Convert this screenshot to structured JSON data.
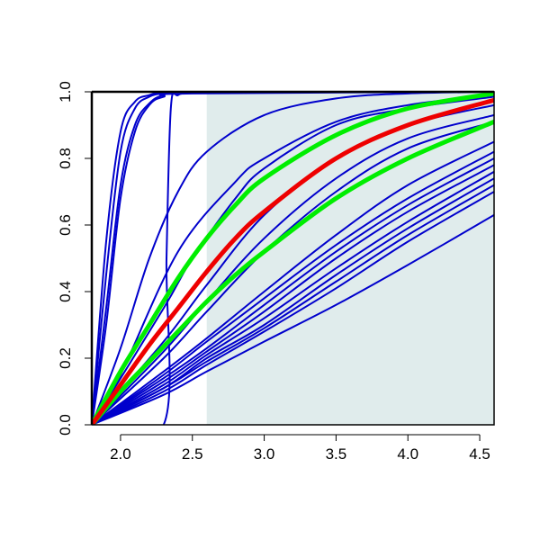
{
  "chart_data": {
    "type": "line",
    "title": "",
    "xlabel": "",
    "ylabel": "",
    "xlim": [
      1.8,
      4.6
    ],
    "ylim": [
      0.0,
      1.0
    ],
    "grid": false,
    "x_ticks": [
      "2.0",
      "2.5",
      "3.0",
      "3.5",
      "4.0",
      "4.5"
    ],
    "y_ticks": [
      "0.0",
      "0.2",
      "0.4",
      "0.6",
      "0.8",
      "1.0"
    ],
    "shaded_region": {
      "x_from": 2.6,
      "x_to": 4.6,
      "color": "#e0ecec"
    },
    "colors": {
      "blue": "#0000cc",
      "green": "#00ee00",
      "red": "#ee0000",
      "axis": "#000000"
    },
    "series": [
      {
        "color": "blue",
        "x": [
          1.8,
          1.9,
          2.0,
          2.1,
          2.2,
          2.3,
          2.5,
          4.6
        ],
        "y": [
          0.0,
          0.55,
          0.88,
          0.97,
          0.99,
          1.0,
          1.0,
          1.0
        ]
      },
      {
        "color": "blue",
        "x": [
          1.8,
          1.9,
          2.0,
          2.1,
          2.2,
          2.3,
          2.5,
          4.6
        ],
        "y": [
          0.0,
          0.45,
          0.82,
          0.95,
          0.985,
          0.995,
          1.0,
          1.0
        ]
      },
      {
        "color": "blue",
        "x": [
          1.8,
          1.9,
          2.0,
          2.1,
          2.2,
          2.3,
          2.5,
          4.6
        ],
        "y": [
          0.0,
          0.35,
          0.72,
          0.9,
          0.965,
          0.99,
          1.0,
          1.0
        ]
      },
      {
        "color": "blue",
        "x": [
          1.8,
          1.9,
          2.0,
          2.1,
          2.2,
          2.3,
          2.5,
          4.6
        ],
        "y": [
          0.0,
          0.3,
          0.68,
          0.88,
          0.96,
          0.985,
          0.995,
          1.0
        ]
      },
      {
        "color": "blue",
        "x": [
          1.8,
          2.3,
          2.32,
          2.35,
          2.4,
          2.5,
          2.6,
          4.6
        ],
        "y": [
          0.0,
          0.0,
          0.5,
          0.95,
          0.99,
          0.998,
          1.0,
          1.0
        ]
      },
      {
        "color": "blue",
        "x": [
          1.8,
          2.0,
          2.2,
          2.4,
          2.6,
          3.0,
          3.5,
          4.0,
          4.6
        ],
        "y": [
          0.0,
          0.23,
          0.5,
          0.7,
          0.82,
          0.93,
          0.98,
          0.995,
          1.0
        ]
      },
      {
        "color": "blue",
        "x": [
          1.8,
          2.0,
          2.4,
          2.8,
          3.0,
          3.5,
          4.0,
          4.6
        ],
        "y": [
          0.0,
          0.15,
          0.52,
          0.73,
          0.8,
          0.91,
          0.96,
          0.99
        ]
      },
      {
        "color": "blue",
        "x": [
          1.8,
          2.3,
          2.5,
          2.8,
          3.0,
          3.5,
          4.0,
          4.6
        ],
        "y": [
          0.0,
          0.35,
          0.5,
          0.68,
          0.77,
          0.9,
          0.95,
          0.985
        ]
      },
      {
        "color": "blue",
        "x": [
          1.8,
          2.3,
          2.6,
          3.0,
          3.5,
          4.0,
          4.6
        ],
        "y": [
          0.0,
          0.25,
          0.42,
          0.63,
          0.8,
          0.9,
          0.96
        ]
      },
      {
        "color": "blue",
        "x": [
          1.8,
          2.3,
          2.6,
          3.0,
          3.5,
          4.0,
          4.6
        ],
        "y": [
          0.0,
          0.22,
          0.37,
          0.56,
          0.74,
          0.86,
          0.93
        ]
      },
      {
        "color": "blue",
        "x": [
          1.8,
          2.3,
          2.6,
          3.0,
          3.5,
          4.0,
          4.6
        ],
        "y": [
          0.0,
          0.2,
          0.34,
          0.52,
          0.7,
          0.83,
          0.91
        ]
      },
      {
        "color": "blue",
        "x": [
          1.8,
          2.3,
          2.6,
          3.0,
          3.5,
          4.0,
          4.6
        ],
        "y": [
          0.0,
          0.16,
          0.26,
          0.4,
          0.57,
          0.72,
          0.85
        ]
      },
      {
        "color": "blue",
        "x": [
          1.8,
          2.3,
          2.6,
          3.0,
          3.5,
          4.0,
          4.6
        ],
        "y": [
          0.0,
          0.15,
          0.25,
          0.38,
          0.54,
          0.68,
          0.82
        ]
      },
      {
        "color": "blue",
        "x": [
          1.8,
          2.3,
          2.6,
          3.0,
          3.5,
          4.0,
          4.6
        ],
        "y": [
          0.0,
          0.14,
          0.23,
          0.36,
          0.52,
          0.66,
          0.8
        ]
      },
      {
        "color": "blue",
        "x": [
          1.8,
          2.3,
          2.6,
          3.0,
          3.5,
          4.0,
          4.6
        ],
        "y": [
          0.0,
          0.13,
          0.22,
          0.34,
          0.5,
          0.64,
          0.78
        ]
      },
      {
        "color": "blue",
        "x": [
          1.8,
          2.3,
          2.6,
          3.0,
          3.5,
          4.0,
          4.6
        ],
        "y": [
          0.0,
          0.12,
          0.21,
          0.32,
          0.47,
          0.61,
          0.76
        ]
      },
      {
        "color": "blue",
        "x": [
          1.8,
          2.3,
          2.6,
          3.0,
          3.5,
          4.0,
          4.6
        ],
        "y": [
          0.0,
          0.11,
          0.2,
          0.3,
          0.45,
          0.59,
          0.74
        ]
      },
      {
        "color": "blue",
        "x": [
          1.8,
          2.3,
          2.6,
          3.0,
          3.5,
          4.0,
          4.6
        ],
        "y": [
          0.0,
          0.11,
          0.19,
          0.29,
          0.43,
          0.57,
          0.72
        ]
      },
      {
        "color": "blue",
        "x": [
          1.8,
          2.3,
          2.6,
          3.0,
          3.5,
          4.0,
          4.6
        ],
        "y": [
          0.0,
          0.1,
          0.18,
          0.28,
          0.41,
          0.55,
          0.7
        ]
      },
      {
        "color": "blue",
        "x": [
          1.8,
          2.3,
          2.6,
          3.0,
          3.5,
          4.0,
          4.6
        ],
        "y": [
          0.0,
          0.09,
          0.16,
          0.25,
          0.36,
          0.48,
          0.63
        ]
      },
      {
        "color": "green",
        "x": [
          1.8,
          2.0,
          2.2,
          2.4,
          2.6,
          2.8,
          3.0,
          3.5,
          4.0,
          4.6
        ],
        "y": [
          0.0,
          0.16,
          0.3,
          0.44,
          0.56,
          0.66,
          0.74,
          0.87,
          0.95,
          0.995
        ]
      },
      {
        "color": "red",
        "x": [
          1.8,
          2.0,
          2.2,
          2.4,
          2.6,
          2.8,
          3.0,
          3.5,
          4.0,
          4.6
        ],
        "y": [
          0.0,
          0.12,
          0.24,
          0.35,
          0.46,
          0.56,
          0.64,
          0.8,
          0.9,
          0.975
        ]
      },
      {
        "color": "green",
        "x": [
          1.8,
          2.0,
          2.2,
          2.4,
          2.6,
          2.8,
          3.0,
          3.5,
          4.0,
          4.6
        ],
        "y": [
          0.0,
          0.1,
          0.19,
          0.28,
          0.37,
          0.45,
          0.52,
          0.68,
          0.8,
          0.91
        ]
      }
    ]
  }
}
